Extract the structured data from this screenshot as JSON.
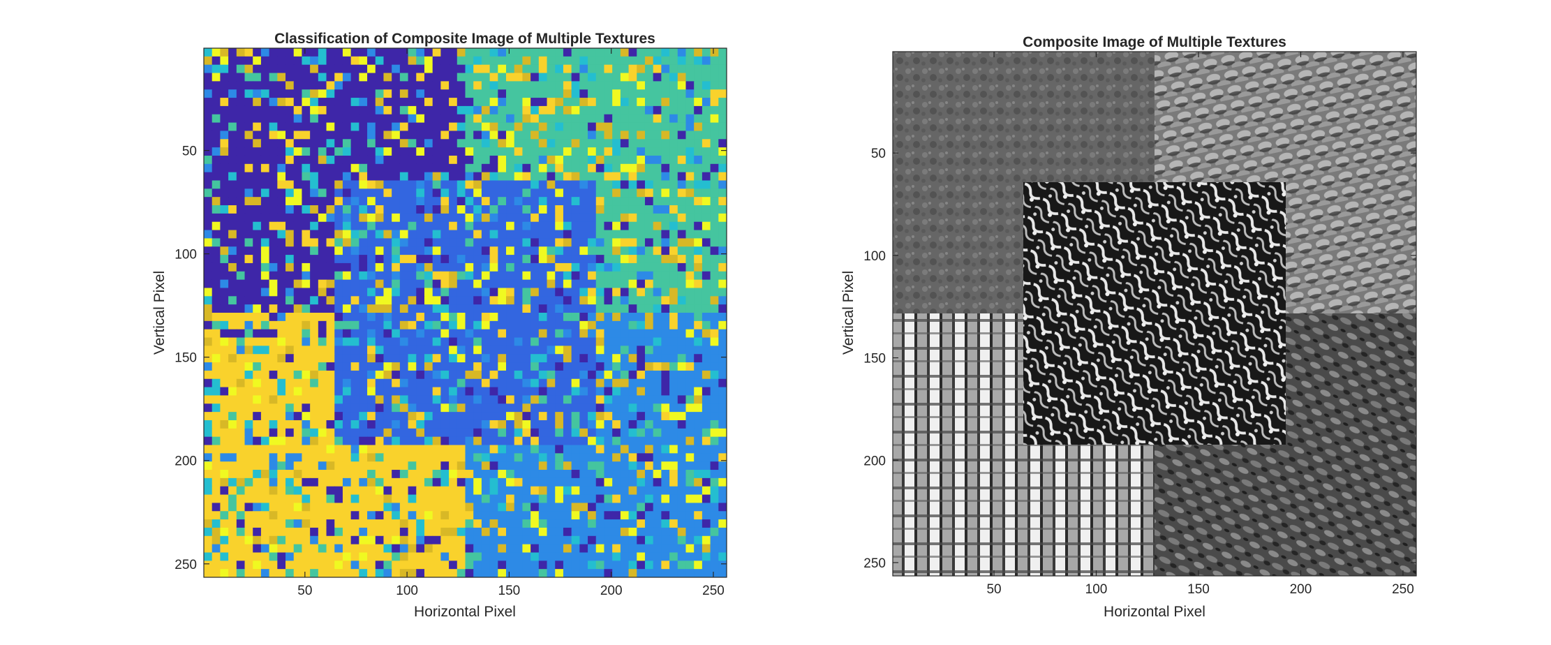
{
  "chart_data": [
    {
      "type": "heatmap",
      "title": "Classification of Composite Image of Multiple Textures",
      "xlabel": "Horizontal Pixel",
      "ylabel": "Vertical Pixel",
      "xlim": [
        1,
        256
      ],
      "ylim": [
        1,
        256
      ],
      "y_direction": "reverse",
      "xticks": [
        50,
        100,
        150,
        200,
        250
      ],
      "yticks": [
        50,
        100,
        150,
        200,
        250
      ],
      "colormap": "parula",
      "class_colors": [
        "#3e26a8",
        "#2d8ae6",
        "#24bed0",
        "#45c59f",
        "#d8b826",
        "#f9d22c",
        "#f0f921"
      ],
      "regions": [
        {
          "x": [
            1,
            128
          ],
          "y": [
            1,
            128
          ],
          "dominant_color": "#3e26a8"
        },
        {
          "x": [
            129,
            256
          ],
          "y": [
            1,
            128
          ],
          "dominant_color": "#45c59f"
        },
        {
          "x": [
            1,
            128
          ],
          "y": [
            129,
            256
          ],
          "dominant_color": "#f9d22c"
        },
        {
          "x": [
            129,
            256
          ],
          "y": [
            129,
            256
          ],
          "dominant_color": "#2d8ae6"
        },
        {
          "x": [
            65,
            192
          ],
          "y": [
            65,
            192
          ],
          "dominant_color": "#3366e0"
        }
      ],
      "grid": false
    },
    {
      "type": "heatmap",
      "title": "Composite Image of Multiple Textures",
      "xlabel": "Horizontal Pixel",
      "ylabel": "Vertical Pixel",
      "xlim": [
        1,
        256
      ],
      "ylim": [
        1,
        256
      ],
      "y_direction": "reverse",
      "xticks": [
        50,
        100,
        150,
        200,
        250
      ],
      "yticks": [
        50,
        100,
        150,
        200,
        250
      ],
      "colormap": "gray",
      "regions": [
        {
          "x": [
            1,
            128
          ],
          "y": [
            1,
            128
          ],
          "texture": "cloudy",
          "mean_gray": 0.45
        },
        {
          "x": [
            129,
            256
          ],
          "y": [
            1,
            128
          ],
          "texture": "knit",
          "mean_gray": 0.52
        },
        {
          "x": [
            1,
            128
          ],
          "y": [
            129,
            256
          ],
          "texture": "weave",
          "mean_gray": 0.62
        },
        {
          "x": [
            129,
            256
          ],
          "y": [
            129,
            256
          ],
          "texture": "pebble",
          "mean_gray": 0.38
        },
        {
          "x": [
            65,
            192
          ],
          "y": [
            65,
            192
          ],
          "texture": "high-contrast",
          "mean_gray": 0.35
        }
      ],
      "grid": false
    }
  ]
}
